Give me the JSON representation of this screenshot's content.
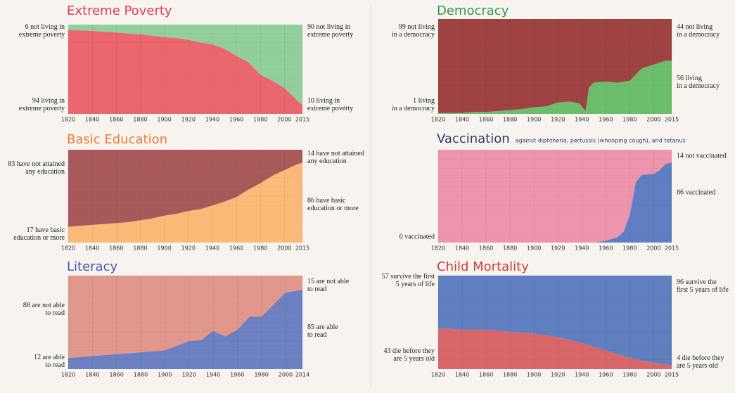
{
  "chart_data": [
    {
      "type": "area",
      "stacked": true,
      "title": "Extreme Poverty",
      "x": [
        1820,
        1830,
        1840,
        1850,
        1860,
        1870,
        1880,
        1890,
        1900,
        1910,
        1920,
        1930,
        1940,
        1950,
        1960,
        1970,
        1980,
        1990,
        2000,
        2010,
        2015
      ],
      "xlim": [
        1820,
        2015
      ],
      "xticks": [
        1820,
        1840,
        1860,
        1880,
        1900,
        1920,
        1940,
        1960,
        1980,
        2000,
        2015
      ],
      "ylim": [
        0,
        100
      ],
      "grid": true,
      "series": [
        {
          "color": "#ec6670",
          "values": [
            94,
            93.5,
            93,
            92,
            91,
            90,
            89,
            87.5,
            86,
            85,
            83,
            80,
            78,
            73,
            65,
            58,
            44,
            37,
            29,
            16,
            10
          ]
        },
        {
          "color": "#93cf9d",
          "values": [
            6,
            6.5,
            7,
            8,
            9,
            10,
            11,
            12.5,
            14,
            15,
            17,
            20,
            22,
            27,
            35,
            42,
            56,
            63,
            71,
            84,
            90
          ]
        }
      ],
      "annotations": {
        "left_top": "6 not living in\nextreme poverty",
        "left_bottom": "94 living in\nextreme poverty",
        "right_top": "90 not living in\nextreme poverty",
        "right_bottom": "10 living in\nextreme poverty"
      },
      "title_color": "#e23b57"
    },
    {
      "type": "area",
      "stacked": true,
      "title": "Basic Education",
      "x": [
        1820,
        1830,
        1840,
        1850,
        1860,
        1870,
        1880,
        1890,
        1900,
        1910,
        1920,
        1930,
        1940,
        1950,
        1960,
        1970,
        1980,
        1990,
        2000,
        2010,
        2015
      ],
      "xlim": [
        1820,
        2015
      ],
      "xticks": [
        1820,
        1840,
        1860,
        1880,
        1900,
        1920,
        1940,
        1960,
        1980,
        2000,
        2015
      ],
      "ylim": [
        0,
        100
      ],
      "grid": true,
      "series": [
        {
          "color": "#fdb977",
          "values": [
            17,
            18,
            19,
            20,
            21,
            22,
            24,
            26,
            29,
            31,
            34,
            36,
            40,
            44,
            49,
            57,
            64,
            72,
            78,
            84,
            86
          ]
        },
        {
          "color": "#a95959",
          "values": [
            83,
            82,
            81,
            80,
            79,
            78,
            76,
            74,
            71,
            69,
            66,
            64,
            60,
            56,
            51,
            43,
            36,
            28,
            22,
            16,
            14
          ]
        }
      ],
      "annotations": {
        "left_top": "83 have not attained\nany education",
        "left_bottom": "17 have basic\neducation or more",
        "right_top": "14 have not attained\nany education",
        "right_bottom": "86 have basic\neducation or more"
      },
      "title_color": "#ef7b3a"
    },
    {
      "type": "area",
      "stacked": true,
      "title": "Literacy",
      "x": [
        1820,
        1830,
        1840,
        1850,
        1860,
        1870,
        1880,
        1890,
        1900,
        1910,
        1920,
        1930,
        1940,
        1950,
        1960,
        1970,
        1980,
        1990,
        2000,
        2010,
        2014
      ],
      "xlim": [
        1820,
        2014
      ],
      "xticks": [
        1820,
        1840,
        1860,
        1880,
        1900,
        1920,
        1940,
        1960,
        1980,
        2000,
        2014
      ],
      "ylim": [
        0,
        100
      ],
      "grid": true,
      "series": [
        {
          "color": "#6c80c2",
          "values": [
            12,
            13,
            14,
            15,
            16,
            17,
            18,
            19,
            20,
            25,
            30,
            31,
            41,
            35,
            42,
            56,
            56,
            69,
            82,
            84,
            85
          ]
        },
        {
          "color": "#e2978c",
          "values": [
            88,
            87,
            86,
            85,
            84,
            83,
            82,
            81,
            80,
            75,
            70,
            69,
            59,
            65,
            58,
            44,
            44,
            31,
            18,
            16,
            15
          ]
        }
      ],
      "annotations": {
        "left_top": "88 are not able\nto read",
        "left_bottom": "12 are able\nto read",
        "right_top": "15 are not able\nto read",
        "right_bottom": "85 are able\nto read"
      },
      "title_color": "#3e5ba9"
    },
    {
      "type": "area",
      "stacked": true,
      "title": "Democracy",
      "x": [
        1820,
        1830,
        1840,
        1850,
        1860,
        1870,
        1880,
        1890,
        1900,
        1910,
        1920,
        1930,
        1938,
        1943,
        1946,
        1950,
        1960,
        1970,
        1980,
        1990,
        2000,
        2010,
        2015
      ],
      "xlim": [
        1820,
        2015
      ],
      "xticks": [
        1820,
        1840,
        1860,
        1880,
        1900,
        1920,
        1940,
        1960,
        1980,
        2000,
        2015
      ],
      "ylim": [
        0,
        100
      ],
      "grid": true,
      "series": [
        {
          "color": "#6dbe6a",
          "values": [
            1,
            1,
            1,
            2,
            2,
            3,
            4,
            5,
            7,
            8,
            12,
            13,
            11,
            3,
            28,
            33,
            34,
            33,
            35,
            48,
            52,
            56,
            56
          ]
        },
        {
          "color": "#9e4242",
          "values": [
            99,
            99,
            99,
            98,
            98,
            97,
            96,
            95,
            93,
            92,
            88,
            87,
            89,
            97,
            72,
            67,
            66,
            67,
            65,
            52,
            48,
            44,
            44
          ]
        }
      ],
      "annotations": {
        "left_top": "99 not living\nin a democracy",
        "left_bottom": "1 living\nin a democracy",
        "right_top": "44 not living\nin a democracy",
        "right_bottom": "56 living\nin a democracy"
      },
      "title_color": "#2e9a4a"
    },
    {
      "type": "area",
      "stacked": true,
      "title": "Vaccination",
      "subtitle": "against diphtheria, pertussis (whooping cough), and tetanus",
      "x": [
        1820,
        1950,
        1960,
        1970,
        1975,
        1980,
        1985,
        1990,
        2000,
        2005,
        2010,
        2015
      ],
      "xlim": [
        1820,
        2015
      ],
      "xticks": [
        1820,
        1840,
        1860,
        1880,
        1900,
        1920,
        1940,
        1960,
        1980,
        2000,
        2015
      ],
      "ylim": [
        0,
        100
      ],
      "grid": true,
      "series": [
        {
          "color": "#5f7fc2",
          "values": [
            0,
            0,
            2,
            6,
            12,
            30,
            65,
            73,
            74,
            78,
            85,
            86
          ]
        },
        {
          "color": "#ee95ad",
          "values": [
            100,
            100,
            98,
            94,
            88,
            70,
            35,
            27,
            26,
            22,
            15,
            14
          ]
        }
      ],
      "annotations": {
        "left_bottom": "0 vaccinated",
        "right_top": "14 not vaccinated",
        "right_bottom": "86 vaccinated"
      },
      "title_color": "#2d3a6c"
    },
    {
      "type": "area",
      "stacked": true,
      "title": "Child Mortality",
      "x": [
        1820,
        1830,
        1840,
        1850,
        1860,
        1870,
        1880,
        1890,
        1900,
        1910,
        1920,
        1930,
        1940,
        1950,
        1960,
        1970,
        1980,
        1990,
        2000,
        2010,
        2015
      ],
      "xlim": [
        1820,
        2015
      ],
      "xticks": [
        1820,
        1840,
        1860,
        1880,
        1900,
        1920,
        1940,
        1960,
        1980,
        2000,
        2015
      ],
      "ylim": [
        0,
        100
      ],
      "grid": true,
      "series": [
        {
          "color": "#d9676a",
          "values": [
            43,
            43,
            42,
            42,
            42,
            41,
            40,
            39,
            38,
            36,
            34,
            31,
            28,
            24,
            20,
            16,
            12,
            9,
            7,
            5,
            4
          ]
        },
        {
          "color": "#5f7fc0",
          "values": [
            57,
            57,
            58,
            58,
            58,
            59,
            60,
            61,
            62,
            64,
            66,
            69,
            72,
            76,
            80,
            84,
            88,
            91,
            93,
            95,
            96
          ]
        }
      ],
      "annotations": {
        "left_top": "57 survive the first\n5 years of life",
        "left_bottom": "43 die before they\nare 5 years old",
        "right_top": "96 survive the\nfirst 5 years of life",
        "right_bottom": "4 die before they\nare 5 years old"
      },
      "title_color": "#d23a3a"
    }
  ]
}
